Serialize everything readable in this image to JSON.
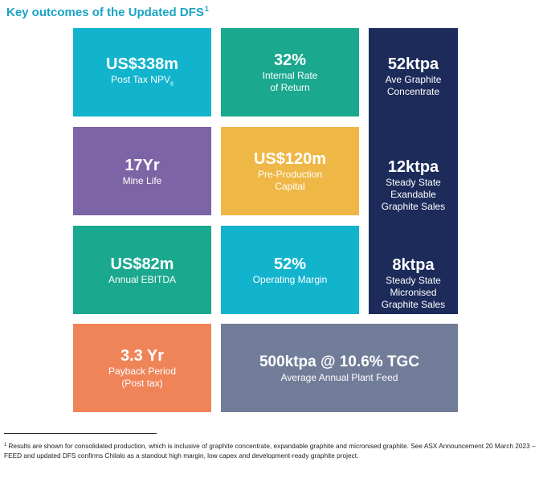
{
  "title": {
    "text": "Key outcomes of the Updated DFS",
    "sup": "1"
  },
  "colors": {
    "title": "#1aa3c4",
    "teal": "#11b3cd",
    "green": "#1aa88f",
    "purple": "#7d64a5",
    "yellow": "#efb746",
    "navy": "#1c2b5a",
    "orange": "#ef8459",
    "slate": "#717d98"
  },
  "tiles": {
    "npv": {
      "value": "US$338m",
      "label": "Post Tax NPV",
      "label_sub": "8"
    },
    "irr": {
      "value": "32%",
      "label_line1": "Internal Rate",
      "label_line2": "of Return"
    },
    "mine_life": {
      "value": "17Yr",
      "label": "Mine Life"
    },
    "capex": {
      "value": "US$120m",
      "label_line1": "Pre-Production",
      "label_line2": "Capital"
    },
    "ebitda": {
      "value": "US$82m",
      "label": "Annual EBITDA"
    },
    "margin": {
      "value": "52%",
      "label": "Operating Margin"
    },
    "payback": {
      "value": "3.3 Yr",
      "label_line1": "Payback Period",
      "label_line2": "(Post tax)"
    },
    "plant_feed": {
      "value": "500ktpa @ 10.6% TGC",
      "label": "Average Annual Plant Feed"
    }
  },
  "graphite_column": {
    "concentrate": {
      "value": "52ktpa",
      "label_line1": "Ave Graphite",
      "label_line2": "Concentrate"
    },
    "expandable": {
      "value": "12ktpa",
      "label_line1": "Steady State",
      "label_line2": "Exandable",
      "label_line3": "Graphite Sales"
    },
    "micronised": {
      "value": "8ktpa",
      "label_line1": "Steady State",
      "label_line2": "Micronised",
      "label_line3": "Graphite Sales"
    }
  },
  "footnote": {
    "marker": "1",
    "text": "Results are shown for consolidated production, which is inclusive of graphite concentrate, expandable graphite and micronised graphite. See ASX Announcement 20 March 2023 – FEED and updated DFS confirms Chilalo as a standout high margin, low capex and development-ready graphite project."
  }
}
